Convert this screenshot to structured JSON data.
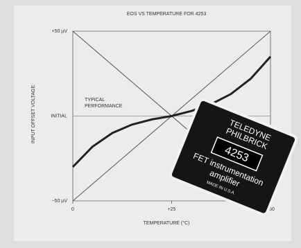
{
  "chart_data": {
    "type": "line",
    "title": "EOS VS TEMPERATURE FOR 4253",
    "x_label": "TEMPERATURE (°C)",
    "y_label": "INPUT OFFSET VOLTAGE",
    "annotations": [
      "TYPICAL",
      "PERFORMANCE"
    ],
    "xlim": [
      0,
      50
    ],
    "xticks": [
      0,
      {
        "value": 25,
        "label": "+25"
      },
      {
        "value": 50,
        "label": "+50"
      }
    ],
    "ylim": [
      -50,
      50
    ],
    "yticks": [
      {
        "value": -50,
        "label": "−50 µV"
      },
      {
        "value": 0,
        "label": "INITIAL"
      },
      {
        "value": 50,
        "label": "+50 µV"
      }
    ],
    "series": [
      {
        "color": "#555555",
        "x": [
          0,
          50
        ],
        "values": [
          50,
          -50
        ]
      },
      {
        "color": "#555555",
        "x": [
          0,
          50
        ],
        "values": [
          -50,
          50
        ]
      },
      {
        "color": "#222222",
        "x": [
          0,
          5,
          10,
          15,
          20,
          25,
          30,
          35,
          40,
          45,
          50
        ],
        "values": [
          -30,
          -18,
          -10,
          -5,
          -2,
          0,
          3,
          7,
          13,
          22,
          35
        ]
      }
    ]
  },
  "chip": {
    "brand": [
      "TELEDYNE",
      "PHILBRICK"
    ],
    "model": "4253",
    "description": [
      "FET instrumentation",
      "amplifier"
    ],
    "origin": "MADE IN U.S.A."
  }
}
